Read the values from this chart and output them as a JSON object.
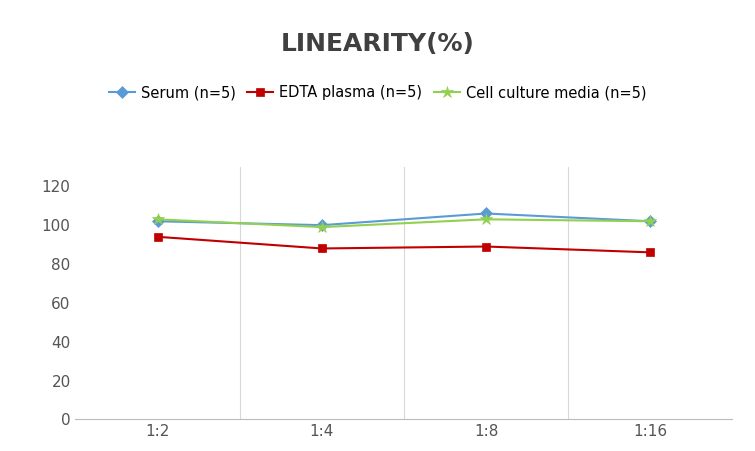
{
  "title": "LINEARITY(%)",
  "x_labels": [
    "1:2",
    "1:4",
    "1:8",
    "1:16"
  ],
  "x_positions": [
    0,
    1,
    2,
    3
  ],
  "series": [
    {
      "label": "Serum (n=5)",
      "values": [
        102,
        100,
        106,
        102
      ],
      "color": "#5B9BD5",
      "marker": "D",
      "marker_size": 6,
      "linewidth": 1.5
    },
    {
      "label": "EDTA plasma (n=5)",
      "values": [
        94,
        88,
        89,
        86
      ],
      "color": "#C00000",
      "marker": "s",
      "marker_size": 6,
      "linewidth": 1.5
    },
    {
      "label": "Cell culture media (n=5)",
      "values": [
        103,
        99,
        103,
        102
      ],
      "color": "#92D050",
      "marker": "*",
      "marker_size": 9,
      "linewidth": 1.5
    }
  ],
  "ylim": [
    0,
    130
  ],
  "yticks": [
    0,
    20,
    40,
    60,
    80,
    100,
    120
  ],
  "background_color": "#FFFFFF",
  "grid_color": "#D8D8D8",
  "title_fontsize": 18,
  "title_fontweight": "bold",
  "legend_fontsize": 10.5,
  "tick_fontsize": 11,
  "legend_ncol": 3
}
